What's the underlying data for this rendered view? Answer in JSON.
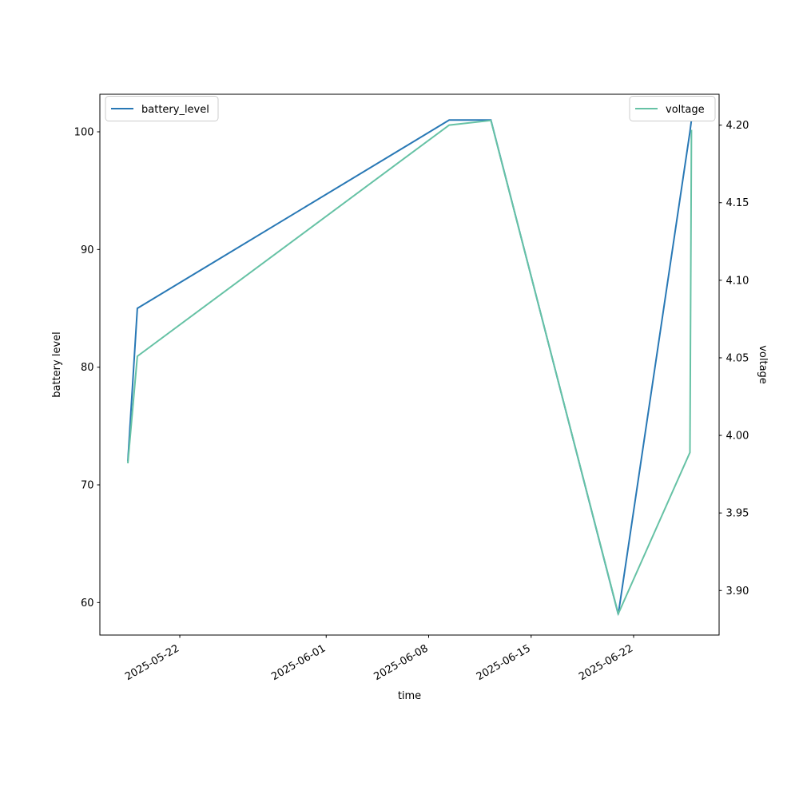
{
  "figure": {
    "background": "#ffffff",
    "axes_color": "#000000",
    "legend_border_color": "#cccccc",
    "legend_background": "#ffffff"
  },
  "chart_data": {
    "type": "line",
    "title": "",
    "xlabel": "time",
    "ylabel_left": "battery level",
    "ylabel_right": "voltage",
    "grid": false,
    "x_origin_date": "2025-05-22",
    "x_tick_labels": [
      "2025-05-22",
      "2025-06-01",
      "2025-06-08",
      "2025-06-15",
      "2025-06-22"
    ],
    "x_tick_days": [
      0,
      10,
      17,
      24,
      31
    ],
    "x_tick_rotation_deg": -30,
    "left_tick_values": [
      60,
      70,
      80,
      90,
      100
    ],
    "left_tick_labels": [
      "60",
      "70",
      "80",
      "90",
      "100"
    ],
    "right_tick_values": [
      3.9,
      3.95,
      4.0,
      4.05,
      4.1,
      4.15,
      4.2
    ],
    "right_tick_labels": [
      "3.90",
      "3.95",
      "4.00",
      "4.05",
      "4.10",
      "4.15",
      "4.20"
    ],
    "xlim_days": [
      -5.46,
      36.84
    ],
    "left_ylim": [
      57.24,
      103.19
    ],
    "right_ylim": [
      3.8713,
      4.2199
    ],
    "legend": {
      "left_label": "battery_level",
      "right_label": "voltage",
      "left_position": "upper left",
      "right_position": "upper right"
    },
    "series": [
      {
        "name": "battery_level",
        "axis": "left",
        "color": "#2878b5",
        "dates": [
          "2025-05-18",
          "2025-05-19",
          "2025-06-09",
          "2025-06-12",
          "2025-06-21",
          "2025-06-26",
          "2025-06-26"
        ],
        "x_days": [
          -3.55,
          -2.9,
          18.4,
          21.25,
          29.95,
          34.85,
          34.95
        ],
        "values": [
          72,
          85,
          101,
          101,
          59,
          100,
          101
        ]
      },
      {
        "name": "voltage",
        "axis": "right",
        "color": "#66c2a5",
        "dates": [
          "2025-05-18",
          "2025-05-19",
          "2025-06-09",
          "2025-06-12",
          "2025-06-21",
          "2025-06-26",
          "2025-06-26"
        ],
        "x_days": [
          -3.55,
          -2.9,
          18.4,
          21.25,
          29.95,
          34.85,
          34.95
        ],
        "values": [
          3.982,
          4.051,
          4.2,
          4.203,
          3.885,
          3.989,
          4.197
        ]
      }
    ]
  }
}
